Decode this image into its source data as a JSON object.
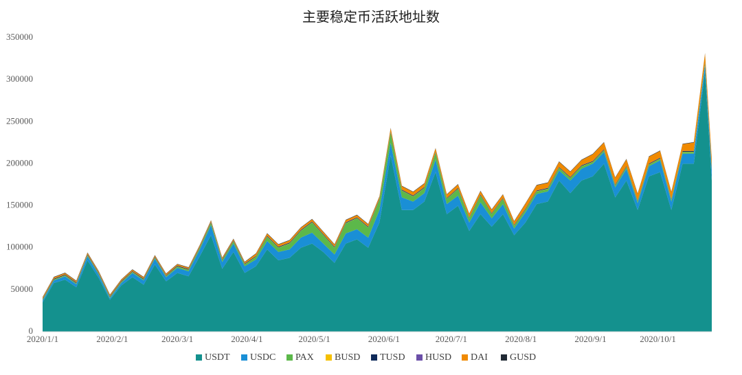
{
  "chart_data": {
    "type": "stacked_area",
    "title": "主要稳定币活跃地址数",
    "x": [
      "2020/1/1",
      "2020/1/6",
      "2020/1/11",
      "2020/1/16",
      "2020/1/21",
      "2020/1/26",
      "2020/1/31",
      "2020/2/5",
      "2020/2/10",
      "2020/2/15",
      "2020/2/20",
      "2020/2/25",
      "2020/3/1",
      "2020/3/6",
      "2020/3/11",
      "2020/3/16",
      "2020/3/21",
      "2020/3/26",
      "2020/3/31",
      "2020/4/5",
      "2020/4/10",
      "2020/4/15",
      "2020/4/20",
      "2020/4/25",
      "2020/4/30",
      "2020/5/5",
      "2020/5/10",
      "2020/5/15",
      "2020/5/20",
      "2020/5/25",
      "2020/5/30",
      "2020/6/4",
      "2020/6/9",
      "2020/6/14",
      "2020/6/19",
      "2020/6/24",
      "2020/6/29",
      "2020/7/4",
      "2020/7/9",
      "2020/7/14",
      "2020/7/19",
      "2020/7/24",
      "2020/7/29",
      "2020/8/3",
      "2020/8/8",
      "2020/8/13",
      "2020/8/18",
      "2020/8/23",
      "2020/8/28",
      "2020/9/2",
      "2020/9/7",
      "2020/9/12",
      "2020/9/17",
      "2020/9/22",
      "2020/9/27",
      "2020/10/2",
      "2020/10/7",
      "2020/10/12",
      "2020/10/17",
      "2020/10/22",
      "2020/10/25"
    ],
    "xlim": [
      "2020/1/1",
      "2020/10/25"
    ],
    "xticks": [
      "2020/1/1",
      "2020/2/1",
      "2020/3/1",
      "2020/4/1",
      "2020/5/1",
      "2020/6/1",
      "2020/7/1",
      "2020/8/1",
      "2020/9/1",
      "2020/10/1"
    ],
    "ylim": [
      0,
      350000
    ],
    "yticks": [
      0,
      50000,
      100000,
      150000,
      200000,
      250000,
      300000,
      350000
    ],
    "legend": "bottom",
    "series": [
      {
        "name": "USDT",
        "color": "#14918e",
        "values": [
          35000,
          58000,
          62000,
          53000,
          85000,
          64000,
          38000,
          55000,
          65000,
          56000,
          80000,
          60000,
          70000,
          66000,
          90000,
          115000,
          75000,
          95000,
          70000,
          78000,
          98000,
          85000,
          88000,
          100000,
          105000,
          95000,
          82000,
          105000,
          110000,
          100000,
          130000,
          210000,
          145000,
          145000,
          155000,
          190000,
          140000,
          150000,
          120000,
          140000,
          125000,
          140000,
          115000,
          130000,
          152000,
          155000,
          180000,
          165000,
          180000,
          185000,
          200000,
          160000,
          180000,
          145000,
          185000,
          190000,
          145000,
          200000,
          200000,
          310000,
          180000
        ]
      },
      {
        "name": "USDC",
        "color": "#1a8fd6",
        "values": [
          2000,
          3000,
          4000,
          3500,
          5000,
          4000,
          2000,
          3000,
          5000,
          5000,
          7000,
          5000,
          6000,
          6000,
          8000,
          12000,
          8000,
          10000,
          8000,
          8000,
          10000,
          10000,
          10000,
          12000,
          13000,
          10000,
          10000,
          12000,
          12000,
          12000,
          15000,
          15000,
          15000,
          10000,
          10000,
          15000,
          12000,
          12000,
          10000,
          14000,
          10000,
          12000,
          8000,
          12000,
          12000,
          12000,
          12000,
          15000,
          14000,
          15000,
          14000,
          12000,
          14000,
          8000,
          12000,
          14000,
          10000,
          12000,
          12000,
          8000,
          12000
        ]
      },
      {
        "name": "PAX",
        "color": "#5cb84a",
        "values": [
          1000,
          1000,
          1000,
          1000,
          1000,
          1000,
          1000,
          1000,
          1000,
          1000,
          1000,
          1000,
          1500,
          1500,
          2000,
          2500,
          2000,
          2500,
          2000,
          3000,
          5000,
          5000,
          7000,
          8000,
          12000,
          10000,
          8000,
          12000,
          13000,
          12000,
          12000,
          12000,
          8000,
          6000,
          6000,
          8000,
          6000,
          8000,
          5000,
          8000,
          5000,
          6000,
          3000,
          3000,
          3000,
          3000,
          3000,
          3000,
          3000,
          2000,
          2000,
          2000,
          2000,
          2000,
          2000,
          2000,
          2000,
          2000,
          2000,
          2000,
          2000
        ]
      },
      {
        "name": "BUSD",
        "color": "#f5c000",
        "values": [
          300,
          300,
          300,
          300,
          300,
          300,
          300,
          300,
          300,
          300,
          300,
          300,
          300,
          300,
          300,
          300,
          300,
          300,
          300,
          300,
          300,
          300,
          300,
          300,
          300,
          300,
          300,
          300,
          300,
          300,
          300,
          300,
          300,
          300,
          300,
          300,
          300,
          300,
          300,
          300,
          300,
          300,
          300,
          300,
          300,
          300,
          300,
          300,
          300,
          300,
          300,
          300,
          300,
          300,
          300,
          300,
          300,
          300,
          300,
          300,
          300
        ]
      },
      {
        "name": "TUSD",
        "color": "#0f2a5a",
        "values": [
          800,
          800,
          800,
          800,
          800,
          800,
          800,
          800,
          800,
          800,
          800,
          800,
          800,
          800,
          800,
          800,
          800,
          800,
          800,
          800,
          800,
          800,
          800,
          800,
          800,
          800,
          800,
          800,
          800,
          800,
          800,
          800,
          800,
          800,
          800,
          800,
          800,
          800,
          800,
          800,
          800,
          800,
          800,
          800,
          800,
          800,
          800,
          800,
          800,
          800,
          800,
          800,
          800,
          800,
          800,
          800,
          800,
          800,
          800,
          800,
          800
        ]
      },
      {
        "name": "HUSD",
        "color": "#6b4fa8",
        "values": [
          200,
          200,
          200,
          200,
          200,
          200,
          200,
          200,
          200,
          200,
          200,
          200,
          200,
          200,
          200,
          200,
          200,
          200,
          200,
          200,
          200,
          200,
          200,
          200,
          200,
          200,
          200,
          200,
          200,
          200,
          200,
          200,
          200,
          200,
          200,
          200,
          200,
          200,
          200,
          200,
          200,
          200,
          200,
          200,
          200,
          200,
          200,
          200,
          200,
          200,
          200,
          200,
          200,
          200,
          200,
          200,
          200,
          200,
          200,
          200,
          200
        ]
      },
      {
        "name": "DAI",
        "color": "#f08a00",
        "values": [
          1500,
          1500,
          1500,
          1500,
          1500,
          1500,
          1500,
          1500,
          1500,
          1500,
          1500,
          1500,
          1500,
          1500,
          1500,
          1500,
          1500,
          1500,
          1500,
          2500,
          2500,
          2500,
          2500,
          2500,
          2500,
          2500,
          2500,
          2500,
          2500,
          2500,
          2500,
          4000,
          4000,
          4000,
          4000,
          4000,
          4000,
          4000,
          4000,
          4000,
          4000,
          4000,
          4000,
          6000,
          6000,
          6000,
          6000,
          6000,
          6000,
          8000,
          8000,
          8000,
          8000,
          8000,
          8000,
          8000,
          8000,
          8000,
          10000,
          10000,
          10000
        ]
      },
      {
        "name": "GUSD",
        "color": "#222a35",
        "values": [
          500,
          500,
          500,
          500,
          500,
          500,
          500,
          500,
          500,
          500,
          500,
          500,
          500,
          500,
          500,
          500,
          500,
          500,
          500,
          500,
          500,
          500,
          500,
          500,
          500,
          500,
          500,
          500,
          500,
          500,
          500,
          500,
          500,
          500,
          500,
          500,
          500,
          500,
          500,
          500,
          500,
          500,
          500,
          500,
          500,
          500,
          500,
          500,
          500,
          500,
          500,
          500,
          500,
          500,
          500,
          500,
          500,
          500,
          500,
          500,
          500
        ]
      }
    ]
  }
}
